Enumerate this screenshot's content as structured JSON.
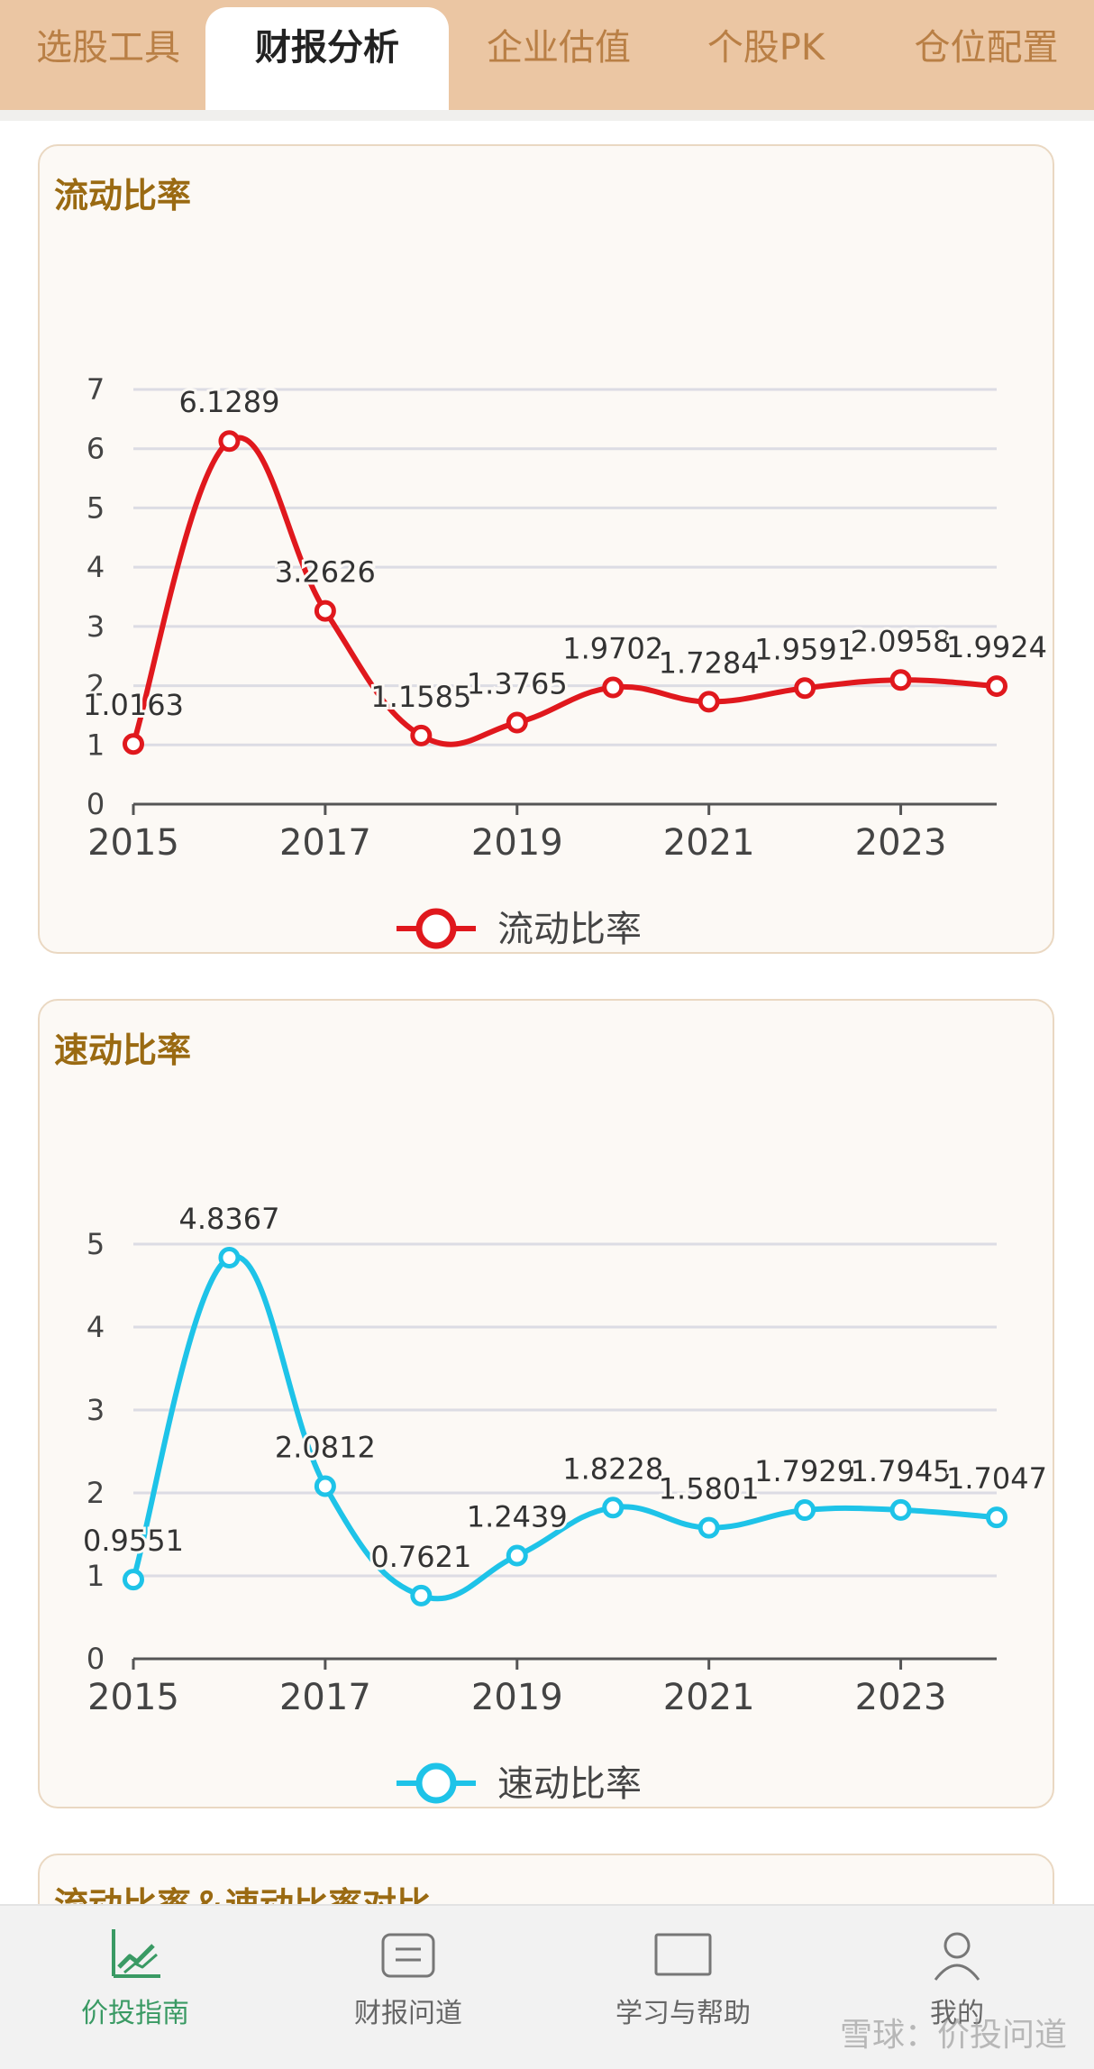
{
  "top_tabs": [
    {
      "label": "选股工具",
      "active": false
    },
    {
      "label": "财报分析",
      "active": true
    },
    {
      "label": "企业估值",
      "active": false
    },
    {
      "label": "个股PK",
      "active": false
    },
    {
      "label": "仓位配置",
      "active": false
    }
  ],
  "cards": [
    {
      "title": "流动比率"
    },
    {
      "title": "速动比率"
    },
    {
      "title": "流动比率＆速动比率对比"
    }
  ],
  "chart_data": [
    {
      "type": "line",
      "title": "流动比率",
      "x": [
        2015,
        2016,
        2017,
        2018,
        2019,
        2020,
        2021,
        2022,
        2023,
        2024
      ],
      "x_tick_labels": [
        "2015",
        "2017",
        "2019",
        "2021",
        "2023"
      ],
      "y_tick_labels": [
        "0",
        "1",
        "2",
        "3",
        "4",
        "5",
        "6",
        "7"
      ],
      "ylim": [
        0,
        7
      ],
      "grid": true,
      "legend_position": "bottom",
      "series": [
        {
          "name": "流动比率",
          "color": "#e0181d",
          "values": [
            1.0163,
            6.1289,
            3.2626,
            1.1585,
            1.3765,
            1.9702,
            1.7284,
            1.9591,
            2.0958,
            1.9924
          ],
          "labels": [
            "1.0163",
            "6.1289",
            "3.2626",
            "1.1585",
            "1.3765",
            "1.9702",
            "1.7284",
            "1.9591",
            "2.0958",
            "1.9924"
          ]
        }
      ]
    },
    {
      "type": "line",
      "title": "速动比率",
      "x": [
        2015,
        2016,
        2017,
        2018,
        2019,
        2020,
        2021,
        2022,
        2023,
        2024
      ],
      "x_tick_labels": [
        "2015",
        "2017",
        "2019",
        "2021",
        "2023"
      ],
      "y_tick_labels": [
        "0",
        "1",
        "2",
        "3",
        "4",
        "5"
      ],
      "ylim": [
        0,
        5
      ],
      "grid": true,
      "legend_position": "bottom",
      "series": [
        {
          "name": "速动比率",
          "color": "#1ec3e8",
          "values": [
            0.9551,
            4.8367,
            2.0812,
            0.7621,
            1.2439,
            1.8228,
            1.5801,
            1.7929,
            1.7945,
            1.7047
          ],
          "labels": [
            "0.9551",
            "4.8367",
            "2.0812",
            "0.7621",
            "1.2439",
            "1.8228",
            "1.5801",
            "1.7929",
            "1.7945",
            "1.7047"
          ]
        }
      ]
    }
  ],
  "bottom_nav": [
    {
      "label": "价投指南",
      "icon": "chart-trend-icon",
      "active": true
    },
    {
      "label": "财报问道",
      "icon": "document-icon",
      "active": false
    },
    {
      "label": "学习与帮助",
      "icon": "book-icon",
      "active": false
    },
    {
      "label": "我的",
      "icon": "user-icon",
      "active": false
    }
  ],
  "watermark": "雪球：价投问道",
  "colors": {
    "tabbar_bg": "#ebc6a3",
    "title_gold": "#9a6a12",
    "current_ratio": "#e0181d",
    "quick_ratio": "#1ec3e8",
    "nav_active": "#3a9a64"
  }
}
